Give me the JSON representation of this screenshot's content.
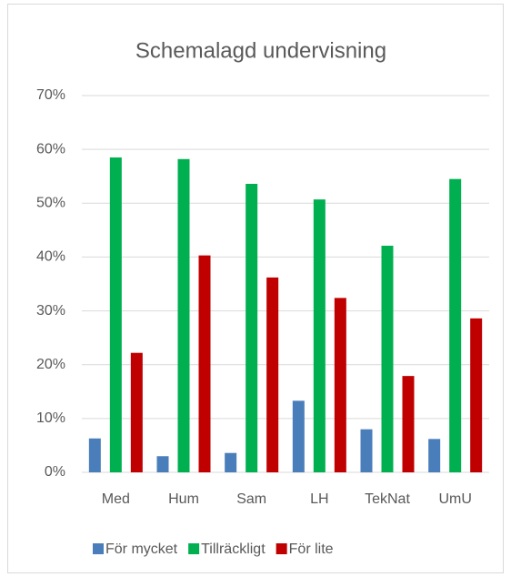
{
  "chart_data": {
    "type": "bar",
    "title": "Schemalagd undervisning",
    "categories": [
      "Med",
      "Hum",
      "Sam",
      "LH",
      "TekNat",
      "UmU"
    ],
    "series": [
      {
        "name": "För mycket",
        "color": "#4a7ebb",
        "values": [
          6.3,
          3.0,
          3.6,
          13.3,
          8.0,
          6.2
        ]
      },
      {
        "name": "Tillräckligt",
        "color": "#00b050",
        "values": [
          58.5,
          58.2,
          53.6,
          50.7,
          42.1,
          54.5
        ]
      },
      {
        "name": "För lite",
        "color": "#c00000",
        "values": [
          22.2,
          40.3,
          36.2,
          32.4,
          17.9,
          28.6
        ]
      }
    ],
    "ylim": [
      0,
      70
    ],
    "yticks": [
      {
        "value": 0,
        "label": "0%"
      },
      {
        "value": 10,
        "label": "10%"
      },
      {
        "value": 20,
        "label": "20%"
      },
      {
        "value": 30,
        "label": "30%"
      },
      {
        "value": 40,
        "label": "40%"
      },
      {
        "value": 50,
        "label": "50%"
      },
      {
        "value": 60,
        "label": "60%"
      },
      {
        "value": 70,
        "label": "70%"
      }
    ],
    "grid": true,
    "legend": "bottom"
  }
}
